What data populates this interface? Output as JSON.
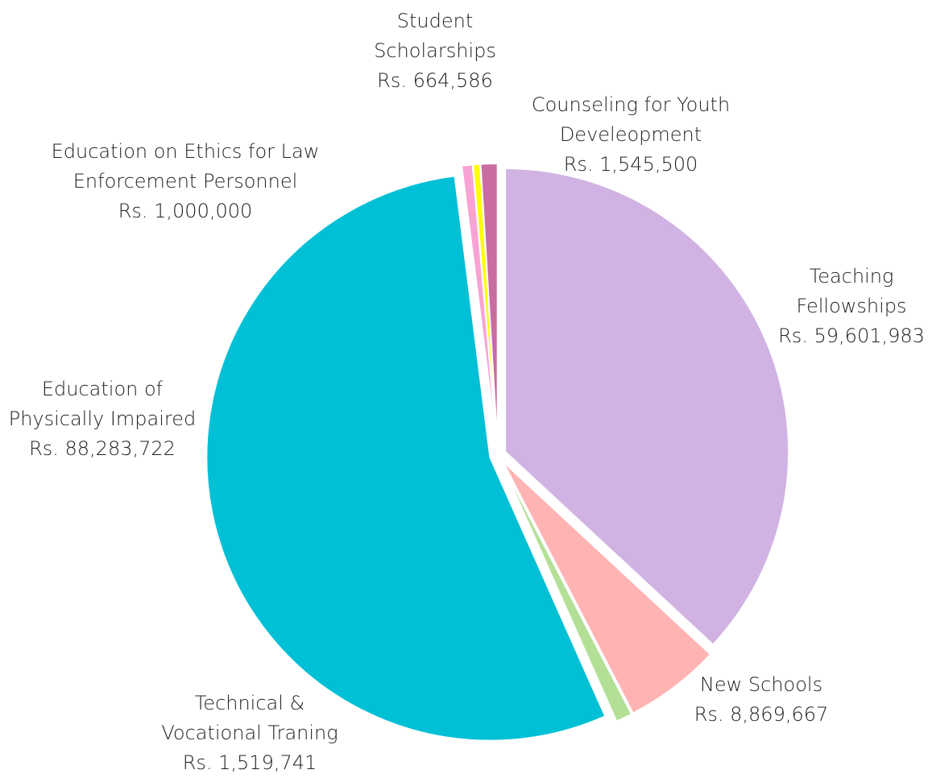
{
  "chart_data": {
    "type": "pie",
    "categories": [
      "Teaching Fellowships",
      "New Schools",
      "Technical & Vocational Traning",
      "Education of Physically Impaired",
      "Education on Ethics for Law Enforcement Personnel",
      "Student Scholarships",
      "Counseling for Youth Develeopment"
    ],
    "values": [
      59601983,
      8869667,
      1519741,
      88283722,
      1000000,
      664586,
      1545500
    ],
    "value_labels": [
      "Rs. 59,601,983",
      "Rs. 8,869,667",
      "Rs. 1,519,741",
      "Rs. 88,283,722",
      "Rs. 1,000,000",
      "Rs. 664,586",
      "Rs. 1,545,500"
    ],
    "colors": [
      "#d0b3e3",
      "#ffb3b3",
      "#b3e096",
      "#00c0d6",
      "#f9a3d4",
      "#ffff00",
      "#c96ca0"
    ]
  }
}
